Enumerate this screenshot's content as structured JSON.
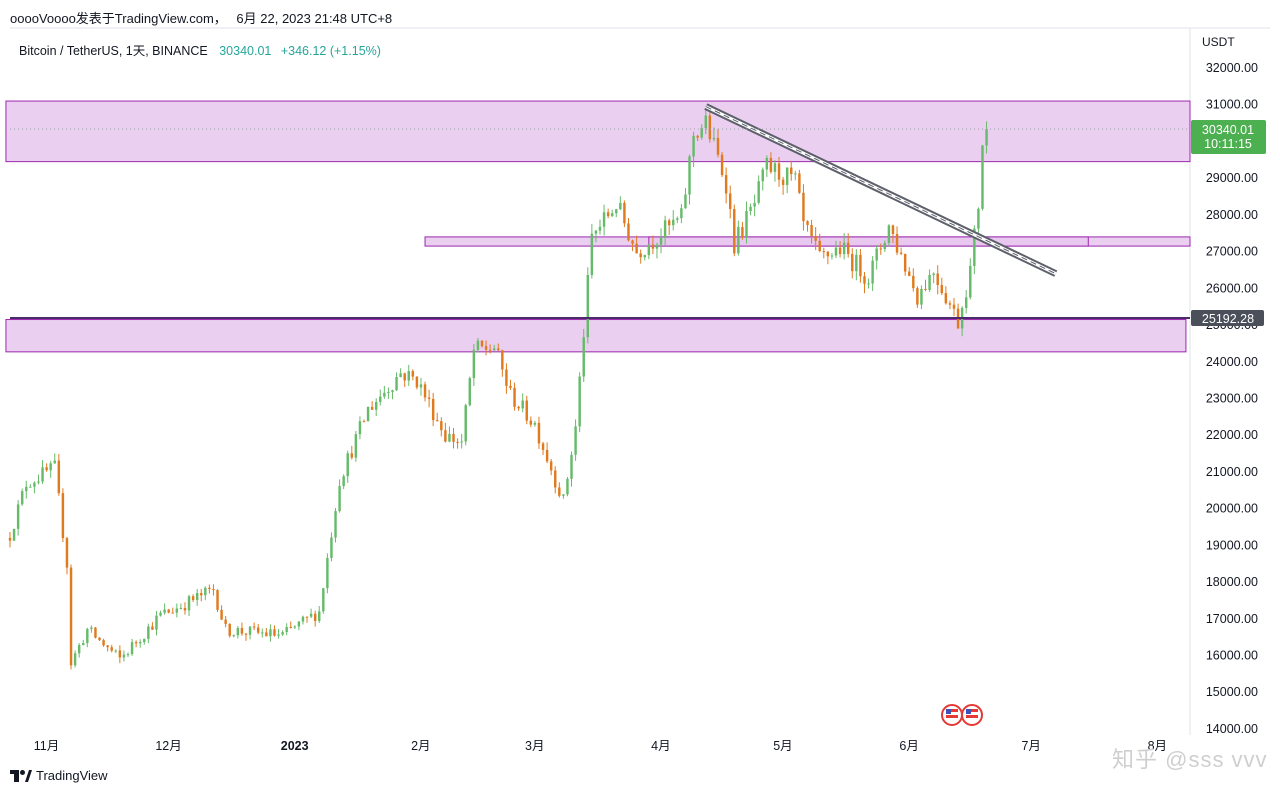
{
  "header": {
    "user": "ooooVoooo",
    "publish_text": "发表于TradingView.com，",
    "date_time": "6月 22, 2023 21:48 UTC+8"
  },
  "legend": {
    "symbol": "Bitcoin / TetherUS, 1天, BINANCE",
    "last": "30340.01",
    "change": "+346.12 (+1.15%)"
  },
  "price_axis": {
    "currency": "USDT",
    "current_price": "30340.01",
    "countdown": "10:11:15",
    "marked_price": "25192.28"
  },
  "footer": {
    "brand": "TradingView",
    "watermark": "知乎 @sss vvv"
  },
  "colors": {
    "up": "#66bb6a",
    "down": "#e07a1f",
    "zone_fill": "#e7c7ee",
    "zone_border": "#9c27b0",
    "trendline": "#5d606b",
    "price_label": "#4caf50"
  },
  "chart_data": {
    "type": "candlestick",
    "title": "Bitcoin / TetherUS, 1天, BINANCE",
    "interval": "1D",
    "ylabel": "USDT",
    "ylim": [
      13900,
      32900
    ],
    "y_ticks": [
      "32000.00",
      "31000.00",
      "30000.00",
      "29000.00",
      "28000.00",
      "27000.00",
      "26000.00",
      "25000.00",
      "24000.00",
      "23000.00",
      "22000.00",
      "21000.00",
      "20000.00",
      "19000.00",
      "18000.00",
      "17000.00",
      "16000.00",
      "15000.00",
      "14000.00"
    ],
    "x_ticks": [
      "11月",
      "12月",
      "2023",
      "2月",
      "3月",
      "4月",
      "5月",
      "6月",
      "7月",
      "8月"
    ],
    "x_range": [
      "2022-10-25",
      "2023-08-11"
    ],
    "anchors": [
      [
        "2022-10-25",
        19300
      ],
      [
        "2022-10-29",
        20700
      ],
      [
        "2022-11-05",
        21100
      ],
      [
        "2022-11-08",
        18500
      ],
      [
        "2022-11-09",
        15800
      ],
      [
        "2022-11-13",
        16700
      ],
      [
        "2022-11-21",
        15900
      ],
      [
        "2022-12-01",
        17100
      ],
      [
        "2022-12-05",
        17300
      ],
      [
        "2022-12-14",
        17800
      ],
      [
        "2022-12-17",
        16700
      ],
      [
        "2022-12-31",
        16550
      ],
      [
        "2023-01-09",
        17200
      ],
      [
        "2023-01-14",
        20800
      ],
      [
        "2023-01-21",
        22700
      ],
      [
        "2023-01-29",
        23700
      ],
      [
        "2023-02-02",
        23500
      ],
      [
        "2023-02-09",
        22000
      ],
      [
        "2023-02-13",
        21800
      ],
      [
        "2023-02-16",
        24300
      ],
      [
        "2023-02-21",
        24400
      ],
      [
        "2023-02-25",
        23100
      ],
      [
        "2023-03-03",
        22300
      ],
      [
        "2023-03-10",
        20200
      ],
      [
        "2023-03-13",
        22200
      ],
      [
        "2023-03-17",
        27400
      ],
      [
        "2023-03-23",
        28300
      ],
      [
        "2023-03-28",
        27000
      ],
      [
        "2023-04-08",
        27900
      ],
      [
        "2023-04-11",
        30200
      ],
      [
        "2023-04-14",
        30500
      ],
      [
        "2023-04-19",
        28900
      ],
      [
        "2023-04-21",
        27200
      ],
      [
        "2023-04-26",
        28300
      ],
      [
        "2023-04-29",
        29300
      ],
      [
        "2023-05-06",
        28900
      ],
      [
        "2023-05-08",
        27700
      ],
      [
        "2023-05-12",
        26800
      ],
      [
        "2023-05-17",
        27100
      ],
      [
        "2023-05-24",
        26300
      ],
      [
        "2023-05-29",
        27700
      ],
      [
        "2023-06-05",
        25800
      ],
      [
        "2023-06-09",
        26500
      ],
      [
        "2023-06-15",
        25100
      ],
      [
        "2023-06-18",
        26500
      ],
      [
        "2023-06-20",
        28300
      ],
      [
        "2023-06-21",
        30000
      ],
      [
        "2023-06-22",
        30340
      ]
    ],
    "zones": [
      {
        "from_date": "2022-10-24",
        "to_date": "2023-08-11",
        "low": 29450,
        "high": 31100
      },
      {
        "from_date": "2023-02-04",
        "to_date": "2023-08-11",
        "low": 27150,
        "high": 27400
      },
      {
        "from_date": "2023-03-31",
        "to_date": "2023-07-17",
        "low": 27150,
        "high": 27400
      },
      {
        "from_date": "2022-10-24",
        "to_date": "2023-08-10",
        "low": 24270,
        "high": 25150
      }
    ],
    "trendline": {
      "from": [
        "2023-04-14",
        30950
      ],
      "to": [
        "2023-07-09",
        26400
      ]
    },
    "horizontal_lines": [
      25192.28
    ],
    "current_price": 30340.01
  }
}
